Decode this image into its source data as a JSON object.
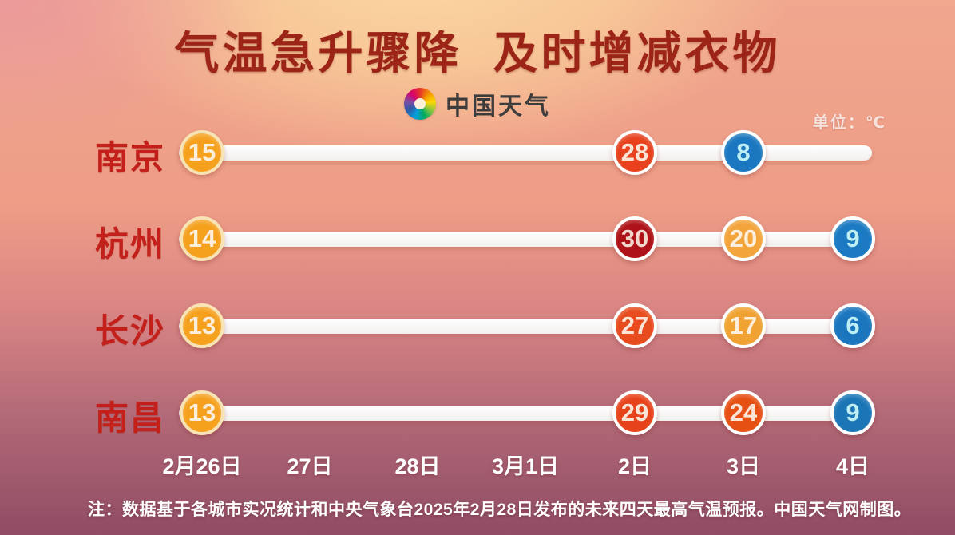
{
  "title": "气温急升骤降  及时增减衣物",
  "logo": {
    "text": "中国天气"
  },
  "unit_label": "单位：℃",
  "note": "注：数据基于各城市实况统计和中央气象台2025年2月28日发布的未来四天最高气温预报。中国天气网制图。",
  "colors": {
    "title_text": "#9C2518",
    "city_text": "#C3201B",
    "bar": "#FDFCFB",
    "date_text": "#FFFFFF",
    "orange_circle": "#F5A11E",
    "red_orange_circle": "#E7431C",
    "dark_red_circle": "#AE1117",
    "blue_circle": "#1B77BF",
    "first_ring": "#F8E3B4",
    "warm_number_text": "#FDEEDC",
    "cool_number_text": "#BDEFF4"
  },
  "chart_data": {
    "type": "line",
    "title": "气温急升骤降 及时增减衣物",
    "unit": "℃",
    "categories": [
      "2月26日",
      "27日",
      "28日",
      "3月1日",
      "2日",
      "3日",
      "4日"
    ],
    "series": [
      {
        "name": "南京",
        "points": [
          {
            "category": "2月26日",
            "value": 15,
            "color": "#F5A11E",
            "ring": "#F8E3B4",
            "text_color": "#FDEEDC"
          },
          {
            "category": "2日",
            "value": 28,
            "color": "#E7411E",
            "ring": "#FFFFFF",
            "text_color": "#FBE3D6"
          },
          {
            "category": "3日",
            "value": 8,
            "color": "#1B77BF",
            "ring": "#FFFFFF",
            "text_color": "#BDEFF4"
          }
        ]
      },
      {
        "name": "杭州",
        "points": [
          {
            "category": "2月26日",
            "value": 14,
            "color": "#F5A11E",
            "ring": "#F8E3B4",
            "text_color": "#FDEEDC"
          },
          {
            "category": "2日",
            "value": 30,
            "color": "#AE1117",
            "ring": "#FFFFFF",
            "text_color": "#F2D7CE"
          },
          {
            "category": "3日",
            "value": 20,
            "color": "#F3A43B",
            "ring": "#FFFFFF",
            "text_color": "#FDEEDC"
          },
          {
            "category": "4日",
            "value": 9,
            "color": "#1B7AC2",
            "ring": "#FFFFFF",
            "text_color": "#BDEFF4"
          }
        ]
      },
      {
        "name": "长沙",
        "points": [
          {
            "category": "2月26日",
            "value": 13,
            "color": "#F5A11E",
            "ring": "#F8E3B4",
            "text_color": "#FDEEDC"
          },
          {
            "category": "2日",
            "value": 27,
            "color": "#E74B1E",
            "ring": "#FFFFFF",
            "text_color": "#FBE3D6"
          },
          {
            "category": "3日",
            "value": 17,
            "color": "#F0A233",
            "ring": "#FFFFFF",
            "text_color": "#FDEEDC"
          },
          {
            "category": "4日",
            "value": 6,
            "color": "#1B76BE",
            "ring": "#FFFFFF",
            "text_color": "#BDEFF4"
          }
        ]
      },
      {
        "name": "南昌",
        "points": [
          {
            "category": "2月26日",
            "value": 13,
            "color": "#F5A11E",
            "ring": "#F8E3B4",
            "text_color": "#FDEEDC"
          },
          {
            "category": "2日",
            "value": 29,
            "color": "#E7431B",
            "ring": "#FFFFFF",
            "text_color": "#FBE3D6"
          },
          {
            "category": "3日",
            "value": 24,
            "color": "#E65013",
            "ring": "#FFFFFF",
            "text_color": "#FBE3D6"
          },
          {
            "category": "4日",
            "value": 9,
            "color": "#1C76B6",
            "ring": "#FFFFFF",
            "text_color": "#BDEFF4"
          }
        ]
      }
    ]
  }
}
